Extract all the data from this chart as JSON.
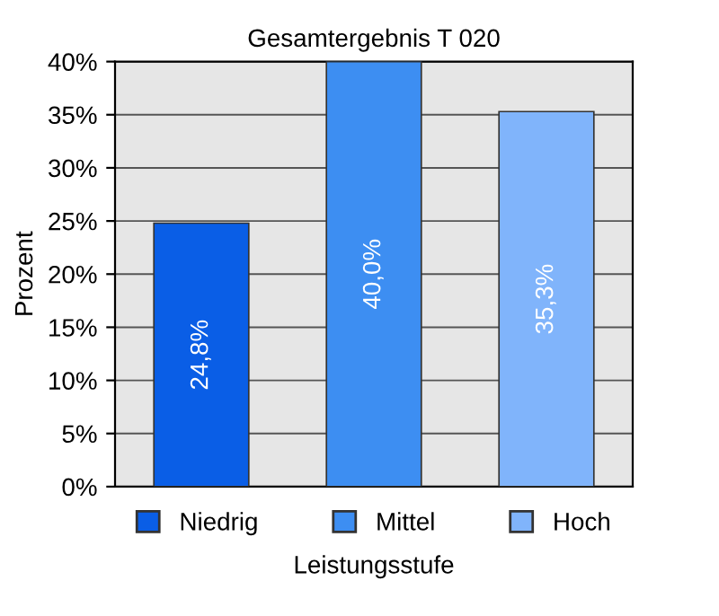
{
  "chart_data": {
    "type": "bar",
    "title": "Gesamtergebnis T 020",
    "xlabel": "Leistungsstufe",
    "ylabel": "Prozent",
    "categories": [
      null,
      null,
      null
    ],
    "series": [
      {
        "name": "Niedrig",
        "color": "#0a5ee6",
        "values": [
          24.8,
          null,
          null
        ],
        "value_labels": [
          "24,8%",
          null,
          null
        ]
      },
      {
        "name": "Mittel",
        "color": "#3d8ef2",
        "values": [
          null,
          40.0,
          null
        ],
        "value_labels": [
          null,
          "40,0%",
          null
        ]
      },
      {
        "name": "Hoch",
        "color": "#80b4fb",
        "values": [
          null,
          null,
          35.3
        ],
        "value_labels": [
          null,
          null,
          "35,3%"
        ]
      }
    ],
    "ylim": [
      0,
      40
    ],
    "yticks": [
      {
        "value": 0,
        "label": "0%"
      },
      {
        "value": 5,
        "label": "5%"
      },
      {
        "value": 10,
        "label": "10%"
      },
      {
        "value": 15,
        "label": "15%"
      },
      {
        "value": 20,
        "label": "20%"
      },
      {
        "value": 25,
        "label": "25%"
      },
      {
        "value": 30,
        "label": "30%"
      },
      {
        "value": 35,
        "label": "35%"
      },
      {
        "value": 40,
        "label": "40%"
      }
    ],
    "grid": "y",
    "legend": "bottom"
  }
}
